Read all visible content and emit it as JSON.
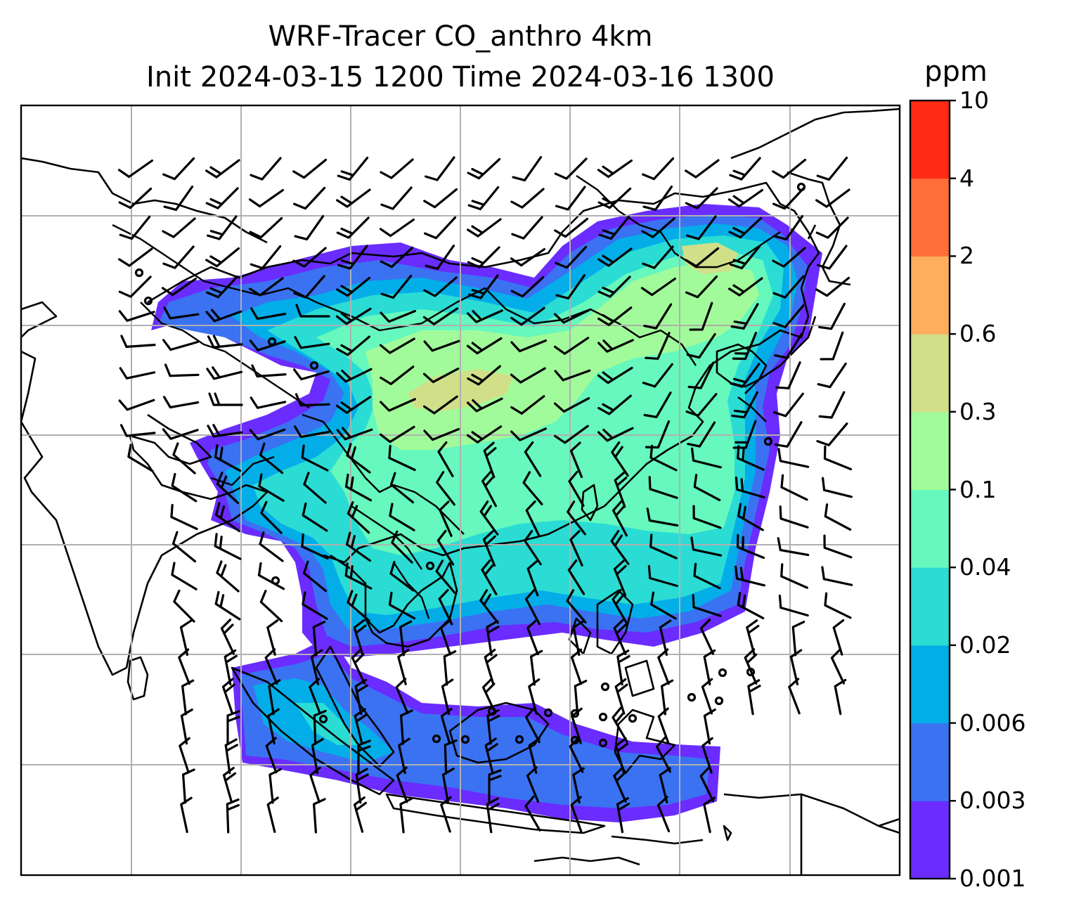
{
  "chart_data": {
    "type": "heatmap",
    "title": "WRF-Tracer CO_anthro 4km",
    "subtitle": "Init 2024-03-15 1200 Time 2024-03-16 1300",
    "colorbar": {
      "unit": "ppm",
      "levels": [
        "0.001",
        "0.003",
        "0.006",
        "0.02",
        "0.04",
        "0.1",
        "0.3",
        "0.6",
        "2",
        "4",
        "10"
      ],
      "colors": [
        "#6a2cff",
        "#3a72f2",
        "#03aee8",
        "#2bdcd4",
        "#66f8bd",
        "#a2fb9a",
        "#d1df88",
        "#ffae5d",
        "#ff6e38",
        "#ff2b15"
      ]
    },
    "grid": true,
    "overlays": [
      "coastlines",
      "country borders",
      "wind barbs"
    ],
    "legend_position": "right"
  }
}
